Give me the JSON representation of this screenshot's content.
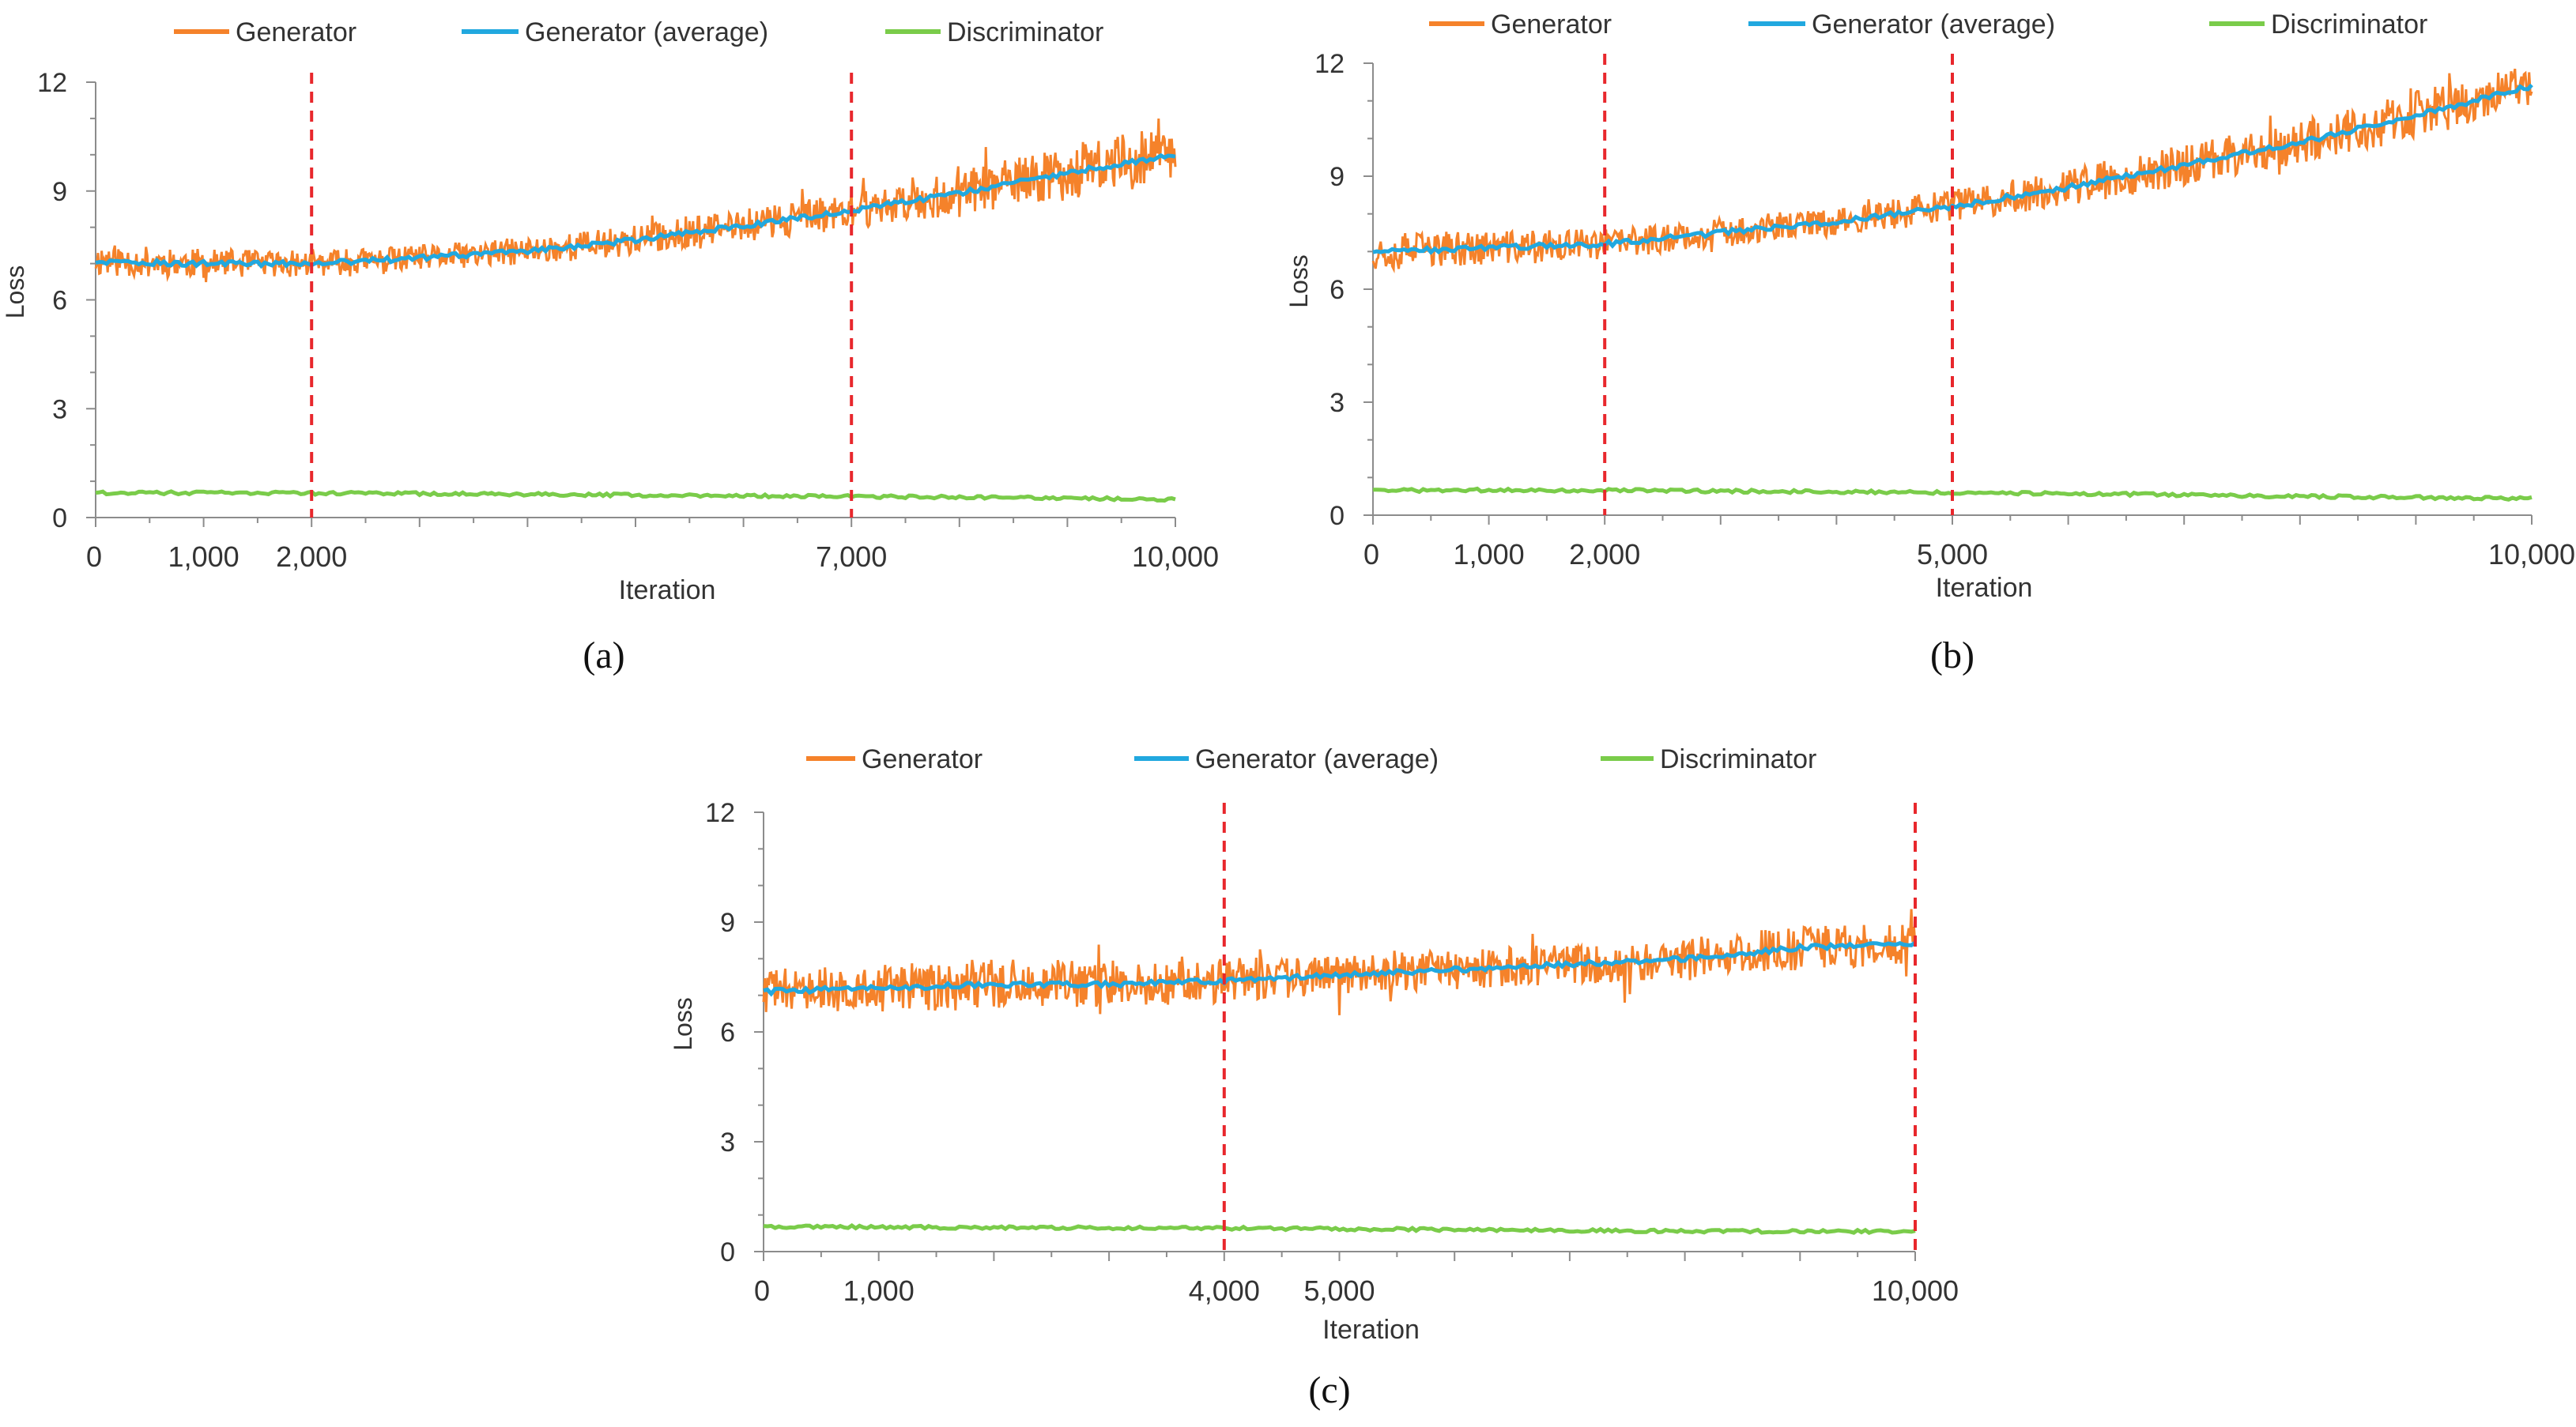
{
  "legend": {
    "generator": "Generator",
    "generator_avg": "Generator (average)",
    "discriminator": "Discriminator"
  },
  "colors": {
    "generator": "#F5822A",
    "generator_avg": "#21A8DF",
    "discriminator": "#7ACC4A",
    "marker": "#E8272C",
    "axis": "#8C8C8C"
  },
  "chart_data": [
    {
      "panel": "a",
      "caption": "(a)",
      "type": "line",
      "xlabel": "Iteration",
      "ylabel": "Loss",
      "xlim": [
        0,
        10000
      ],
      "ylim": [
        0,
        12
      ],
      "yticks": [
        0,
        3,
        6,
        9,
        12
      ],
      "xtick_labels": [
        {
          "x": 0,
          "label": "0"
        },
        {
          "x": 1000,
          "label": "1,000"
        },
        {
          "x": 2000,
          "label": "2,000"
        },
        {
          "x": 7000,
          "label": "7,000"
        },
        {
          "x": 10000,
          "label": "10,000"
        }
      ],
      "markers": [
        2000,
        7000
      ],
      "series": [
        {
          "name": "Generator",
          "x": [
            0,
            1000,
            2000,
            3000,
            4000,
            5000,
            6000,
            7000,
            8000,
            9000,
            10000
          ],
          "values": [
            7.1,
            7.0,
            7.0,
            7.15,
            7.35,
            7.65,
            8.05,
            8.45,
            8.95,
            9.5,
            10.1
          ],
          "noise": [
            0.45,
            0.4,
            0.35,
            0.35,
            0.38,
            0.42,
            0.45,
            0.5,
            0.6,
            0.75,
            0.85
          ]
        },
        {
          "name": "Generator (average)",
          "x": [
            0,
            1000,
            2000,
            3000,
            4000,
            5000,
            6000,
            7000,
            8000,
            9000,
            10000
          ],
          "values": [
            7.05,
            7.0,
            7.0,
            7.15,
            7.35,
            7.65,
            8.05,
            8.45,
            8.95,
            9.5,
            10.0
          ]
        },
        {
          "name": "Discriminator",
          "x": [
            0,
            1000,
            2000,
            3000,
            4000,
            5000,
            6000,
            7000,
            8000,
            9000,
            10000
          ],
          "values": [
            0.68,
            0.68,
            0.67,
            0.66,
            0.64,
            0.62,
            0.6,
            0.58,
            0.56,
            0.53,
            0.5
          ]
        }
      ]
    },
    {
      "panel": "b",
      "caption": "(b)",
      "type": "line",
      "xlabel": "Iteration",
      "ylabel": "Loss",
      "xlim": [
        0,
        10000
      ],
      "ylim": [
        0,
        12
      ],
      "yticks": [
        0,
        3,
        6,
        9,
        12
      ],
      "xtick_labels": [
        {
          "x": 0,
          "label": "0"
        },
        {
          "x": 1000,
          "label": "1,000"
        },
        {
          "x": 2000,
          "label": "2,000"
        },
        {
          "x": 5000,
          "label": "5,000"
        },
        {
          "x": 10000,
          "label": "10,000"
        }
      ],
      "markers": [
        2000,
        5000
      ],
      "series": [
        {
          "name": "Generator",
          "x": [
            0,
            1000,
            2000,
            3000,
            4000,
            5000,
            6000,
            7000,
            8000,
            9000,
            10000
          ],
          "values": [
            7.0,
            7.1,
            7.2,
            7.5,
            7.8,
            8.2,
            8.7,
            9.3,
            9.9,
            10.6,
            11.4
          ],
          "noise": [
            0.5,
            0.45,
            0.4,
            0.38,
            0.4,
            0.45,
            0.5,
            0.55,
            0.6,
            0.65,
            0.6
          ]
        },
        {
          "name": "Generator (average)",
          "x": [
            0,
            1000,
            2000,
            3000,
            4000,
            5000,
            6000,
            7000,
            8000,
            9000,
            10000
          ],
          "values": [
            7.0,
            7.1,
            7.2,
            7.5,
            7.8,
            8.2,
            8.7,
            9.3,
            9.9,
            10.6,
            11.4
          ]
        },
        {
          "name": "Discriminator",
          "x": [
            0,
            1000,
            2000,
            3000,
            4000,
            5000,
            6000,
            7000,
            8000,
            9000,
            10000
          ],
          "values": [
            0.65,
            0.67,
            0.66,
            0.64,
            0.62,
            0.6,
            0.57,
            0.54,
            0.5,
            0.47,
            0.44
          ]
        }
      ]
    },
    {
      "panel": "c",
      "caption": "(c)",
      "type": "line",
      "xlabel": "Iteration",
      "ylabel": "Loss",
      "xlim": [
        0,
        10000
      ],
      "ylim": [
        0,
        12
      ],
      "yticks": [
        0,
        3,
        6,
        9,
        12
      ],
      "xtick_labels": [
        {
          "x": 0,
          "label": "0"
        },
        {
          "x": 1000,
          "label": "1,000"
        },
        {
          "x": 4000,
          "label": "4,000"
        },
        {
          "x": 5000,
          "label": "5,000"
        },
        {
          "x": 10000,
          "label": "10,000"
        }
      ],
      "markers": [
        4000,
        10000
      ],
      "series": [
        {
          "name": "Generator",
          "x": [
            0,
            1000,
            2000,
            3000,
            4000,
            5000,
            6000,
            7000,
            8000,
            9000,
            10000
          ],
          "values": [
            7.1,
            7.2,
            7.3,
            7.3,
            7.4,
            7.55,
            7.7,
            7.85,
            8.0,
            8.3,
            8.4
          ],
          "noise": [
            0.6,
            0.65,
            0.7,
            0.65,
            0.6,
            0.55,
            0.55,
            0.55,
            0.55,
            0.6,
            0.55
          ]
        },
        {
          "name": "Generator (average)",
          "x": [
            0,
            1000,
            2000,
            3000,
            4000,
            5000,
            6000,
            7000,
            8000,
            9000,
            10000
          ],
          "values": [
            7.1,
            7.2,
            7.3,
            7.3,
            7.4,
            7.55,
            7.7,
            7.85,
            8.0,
            8.3,
            8.4
          ]
        },
        {
          "name": "Discriminator",
          "x": [
            0,
            1000,
            2000,
            3000,
            4000,
            5000,
            6000,
            7000,
            8000,
            9000,
            10000
          ],
          "values": [
            0.68,
            0.67,
            0.66,
            0.65,
            0.64,
            0.62,
            0.6,
            0.58,
            0.56,
            0.55,
            0.55
          ]
        }
      ]
    }
  ]
}
